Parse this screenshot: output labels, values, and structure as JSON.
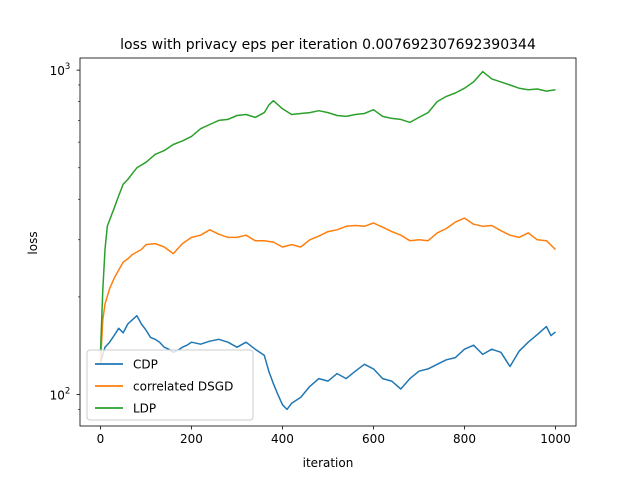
{
  "chart_data": {
    "type": "line",
    "title": "loss with privacy eps per iteration 0.007692307692390344",
    "xlabel": "iteration",
    "ylabel": "loss",
    "yscale": "log",
    "xlim": [
      -45,
      1045
    ],
    "ylim": [
      80,
      1090
    ],
    "grid": false,
    "legend_position": "lower-left",
    "x_ticks": [
      0,
      200,
      400,
      600,
      800,
      1000
    ],
    "x_tick_labels": [
      "0",
      "200",
      "400",
      "600",
      "800",
      "1000"
    ],
    "y_ticks_major": [
      100,
      1000
    ],
    "y_tick_base": "10",
    "y_tick_exponents": [
      "2",
      "3"
    ],
    "y_ticks_minor": [
      90,
      200,
      300,
      400,
      500,
      600,
      700,
      800,
      900
    ],
    "series": [
      {
        "name": "CDP",
        "color": "#1f77b4",
        "x": [
          0,
          10,
          20,
          30,
          40,
          50,
          60,
          70,
          80,
          90,
          100,
          110,
          120,
          130,
          140,
          150,
          160,
          170,
          180,
          190,
          200,
          220,
          240,
          260,
          280,
          300,
          320,
          340,
          350,
          360,
          370,
          380,
          390,
          400,
          410,
          420,
          440,
          460,
          480,
          500,
          520,
          540,
          560,
          580,
          600,
          620,
          640,
          660,
          680,
          700,
          720,
          740,
          760,
          780,
          800,
          820,
          840,
          860,
          880,
          900,
          920,
          940,
          960,
          980,
          990,
          1000
        ],
        "y": [
          125,
          140,
          145,
          152,
          160,
          155,
          165,
          170,
          175,
          165,
          158,
          150,
          148,
          145,
          140,
          138,
          135,
          137,
          140,
          142,
          145,
          143,
          146,
          148,
          145,
          140,
          145,
          138,
          135,
          132,
          118,
          108,
          100,
          93,
          90,
          94,
          98,
          106,
          112,
          110,
          116,
          112,
          118,
          124,
          120,
          112,
          110,
          104,
          112,
          118,
          120,
          124,
          128,
          130,
          138,
          142,
          133,
          138,
          135,
          122,
          136,
          145,
          153,
          162,
          152,
          156
        ]
      },
      {
        "name": "correlated DSGD",
        "color": "#ff7f0e",
        "x": [
          0,
          5,
          10,
          20,
          30,
          40,
          50,
          60,
          70,
          80,
          90,
          100,
          120,
          140,
          160,
          180,
          200,
          220,
          240,
          260,
          280,
          300,
          320,
          340,
          360,
          380,
          400,
          420,
          440,
          460,
          480,
          500,
          520,
          540,
          560,
          580,
          600,
          620,
          640,
          660,
          680,
          700,
          720,
          740,
          760,
          780,
          800,
          820,
          840,
          860,
          880,
          900,
          920,
          940,
          960,
          980,
          1000
        ],
        "y": [
          125,
          170,
          190,
          212,
          228,
          242,
          256,
          262,
          270,
          275,
          280,
          290,
          292,
          285,
          272,
          292,
          305,
          310,
          322,
          312,
          305,
          305,
          310,
          298,
          298,
          295,
          285,
          290,
          285,
          300,
          308,
          318,
          322,
          330,
          332,
          330,
          338,
          328,
          318,
          310,
          298,
          300,
          298,
          315,
          325,
          340,
          350,
          335,
          330,
          332,
          320,
          310,
          305,
          315,
          300,
          298,
          280
        ]
      },
      {
        "name": "LDP",
        "color": "#2ca02c",
        "x": [
          0,
          5,
          10,
          15,
          20,
          30,
          40,
          50,
          60,
          70,
          80,
          90,
          100,
          120,
          140,
          160,
          180,
          200,
          220,
          240,
          260,
          280,
          300,
          320,
          340,
          360,
          370,
          380,
          400,
          420,
          440,
          460,
          480,
          500,
          520,
          540,
          560,
          580,
          600,
          620,
          640,
          660,
          680,
          700,
          720,
          740,
          760,
          780,
          800,
          820,
          840,
          860,
          880,
          900,
          920,
          940,
          960,
          980,
          1000
        ],
        "y": [
          135,
          210,
          280,
          330,
          345,
          375,
          410,
          445,
          460,
          480,
          500,
          510,
          520,
          550,
          565,
          590,
          605,
          625,
          660,
          680,
          700,
          705,
          725,
          730,
          715,
          740,
          780,
          805,
          760,
          730,
          735,
          740,
          750,
          740,
          725,
          720,
          730,
          735,
          755,
          720,
          710,
          705,
          690,
          715,
          740,
          800,
          830,
          850,
          880,
          920,
          990,
          940,
          920,
          900,
          880,
          870,
          875,
          862,
          870
        ]
      }
    ]
  }
}
